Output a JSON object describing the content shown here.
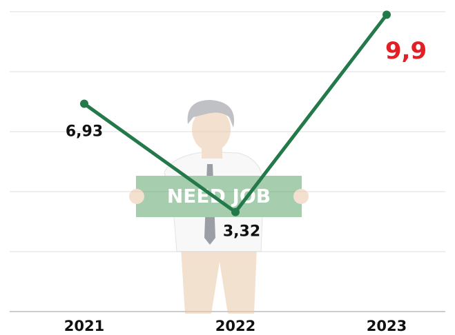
{
  "chart_data": {
    "type": "line",
    "categories": [
      "2021",
      "2022",
      "2023"
    ],
    "series": [
      {
        "color": "#23794a",
        "values": [
          6.93,
          3.32,
          9.9
        ],
        "value_labels": [
          "6,93",
          "3,32",
          "9,9"
        ]
      }
    ],
    "value_label_colors": [
      "#111111",
      "#111111",
      "#e31e24"
    ],
    "ylim": [
      0,
      10
    ],
    "yticks": [
      0,
      2,
      4,
      6,
      8,
      10
    ],
    "grid": true,
    "annotations": [
      {
        "text": "NEED JOB"
      }
    ]
  }
}
